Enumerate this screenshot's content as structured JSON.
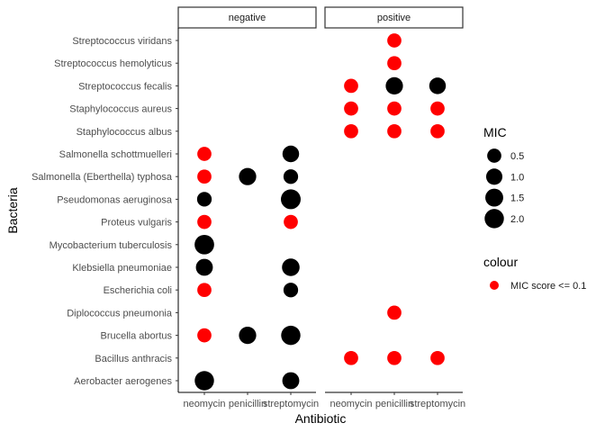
{
  "chart_data": {
    "type": "scatter",
    "facet_variable": "Gram staining",
    "facets": [
      "negative",
      "positive"
    ],
    "antibiotics": [
      "neomycin",
      "penicillin",
      "streptomycin"
    ],
    "bacteria": [
      "Aerobacter aerogenes",
      "Bacillus anthracis",
      "Brucella abortus",
      "Diplococcus pneumonia",
      "Escherichia coli",
      "Klebsiella pneumoniae",
      "Mycobacterium tuberculosis",
      "Proteus vulgaris",
      "Pseudomonas aeruginosa",
      "Salmonella (Eberthella) typhosa",
      "Salmonella schottmuelleri",
      "Staphylococcus albus",
      "Staphylococcus aureus",
      "Streptococcus fecalis",
      "Streptococcus hemolyticus",
      "Streptococcus viridans"
    ],
    "xlabel": "Antibiotic",
    "ylabel": "Bacteria",
    "size_legend": {
      "title": "MIC",
      "breaks": [
        0.5,
        1.0,
        1.5,
        2.0
      ],
      "labels": [
        "0.5",
        "1.0",
        "1.5",
        "2.0"
      ]
    },
    "colour_legend": {
      "title": "colour",
      "labels": [
        "MIC score <= 0.1"
      ],
      "color": "#ff0000"
    },
    "points": [
      {
        "facet": "negative",
        "bacteria": "Aerobacter aerogenes",
        "antibiotic": "neomycin",
        "mic": 2.0,
        "low_mic": false
      },
      {
        "facet": "negative",
        "bacteria": "Aerobacter aerogenes",
        "antibiotic": "streptomycin",
        "mic": 1.2,
        "low_mic": false
      },
      {
        "facet": "negative",
        "bacteria": "Brucella abortus",
        "antibiotic": "neomycin",
        "mic": 0.5,
        "low_mic": true
      },
      {
        "facet": "negative",
        "bacteria": "Brucella abortus",
        "antibiotic": "penicillin",
        "mic": 1.3,
        "low_mic": false
      },
      {
        "facet": "negative",
        "bacteria": "Brucella abortus",
        "antibiotic": "streptomycin",
        "mic": 2.0,
        "low_mic": false
      },
      {
        "facet": "negative",
        "bacteria": "Escherichia coli",
        "antibiotic": "neomycin",
        "mic": 0.5,
        "low_mic": true
      },
      {
        "facet": "negative",
        "bacteria": "Escherichia coli",
        "antibiotic": "streptomycin",
        "mic": 0.6,
        "low_mic": false
      },
      {
        "facet": "negative",
        "bacteria": "Klebsiella pneumoniae",
        "antibiotic": "neomycin",
        "mic": 1.2,
        "low_mic": false
      },
      {
        "facet": "negative",
        "bacteria": "Klebsiella pneumoniae",
        "antibiotic": "streptomycin",
        "mic": 1.4,
        "low_mic": false
      },
      {
        "facet": "negative",
        "bacteria": "Mycobacterium tuberculosis",
        "antibiotic": "neomycin",
        "mic": 2.1,
        "low_mic": false
      },
      {
        "facet": "negative",
        "bacteria": "Proteus vulgaris",
        "antibiotic": "neomycin",
        "mic": 0.5,
        "low_mic": true
      },
      {
        "facet": "negative",
        "bacteria": "Proteus vulgaris",
        "antibiotic": "streptomycin",
        "mic": 0.5,
        "low_mic": true
      },
      {
        "facet": "negative",
        "bacteria": "Pseudomonas aeruginosa",
        "antibiotic": "neomycin",
        "mic": 0.6,
        "low_mic": false
      },
      {
        "facet": "negative",
        "bacteria": "Pseudomonas aeruginosa",
        "antibiotic": "streptomycin",
        "mic": 2.2,
        "low_mic": false
      },
      {
        "facet": "negative",
        "bacteria": "Salmonella (Eberthella) typhosa",
        "antibiotic": "neomycin",
        "mic": 0.5,
        "low_mic": true
      },
      {
        "facet": "negative",
        "bacteria": "Salmonella (Eberthella) typhosa",
        "antibiotic": "penicillin",
        "mic": 1.3,
        "low_mic": false
      },
      {
        "facet": "negative",
        "bacteria": "Salmonella (Eberthella) typhosa",
        "antibiotic": "streptomycin",
        "mic": 0.6,
        "low_mic": false
      },
      {
        "facet": "negative",
        "bacteria": "Salmonella schottmuelleri",
        "antibiotic": "neomycin",
        "mic": 0.5,
        "low_mic": true
      },
      {
        "facet": "negative",
        "bacteria": "Salmonella schottmuelleri",
        "antibiotic": "streptomycin",
        "mic": 1.1,
        "low_mic": false
      },
      {
        "facet": "positive",
        "bacteria": "Bacillus anthracis",
        "antibiotic": "neomycin",
        "mic": 0.5,
        "low_mic": true
      },
      {
        "facet": "positive",
        "bacteria": "Bacillus anthracis",
        "antibiotic": "penicillin",
        "mic": 0.5,
        "low_mic": true
      },
      {
        "facet": "positive",
        "bacteria": "Bacillus anthracis",
        "antibiotic": "streptomycin",
        "mic": 0.5,
        "low_mic": true
      },
      {
        "facet": "positive",
        "bacteria": "Diplococcus pneumonia",
        "antibiotic": "penicillin",
        "mic": 0.5,
        "low_mic": true
      },
      {
        "facet": "positive",
        "bacteria": "Staphylococcus albus",
        "antibiotic": "neomycin",
        "mic": 0.5,
        "low_mic": true
      },
      {
        "facet": "positive",
        "bacteria": "Staphylococcus albus",
        "antibiotic": "penicillin",
        "mic": 0.5,
        "low_mic": true
      },
      {
        "facet": "positive",
        "bacteria": "Staphylococcus albus",
        "antibiotic": "streptomycin",
        "mic": 0.5,
        "low_mic": true
      },
      {
        "facet": "positive",
        "bacteria": "Staphylococcus aureus",
        "antibiotic": "neomycin",
        "mic": 0.5,
        "low_mic": true
      },
      {
        "facet": "positive",
        "bacteria": "Staphylococcus aureus",
        "antibiotic": "penicillin",
        "mic": 0.5,
        "low_mic": true
      },
      {
        "facet": "positive",
        "bacteria": "Staphylococcus aureus",
        "antibiotic": "streptomycin",
        "mic": 0.5,
        "low_mic": true
      },
      {
        "facet": "positive",
        "bacteria": "Streptococcus fecalis",
        "antibiotic": "neomycin",
        "mic": 0.5,
        "low_mic": true
      },
      {
        "facet": "positive",
        "bacteria": "Streptococcus fecalis",
        "antibiotic": "penicillin",
        "mic": 1.3,
        "low_mic": false
      },
      {
        "facet": "positive",
        "bacteria": "Streptococcus fecalis",
        "antibiotic": "streptomycin",
        "mic": 1.1,
        "low_mic": false
      },
      {
        "facet": "positive",
        "bacteria": "Streptococcus hemolyticus",
        "antibiotic": "penicillin",
        "mic": 0.5,
        "low_mic": true
      },
      {
        "facet": "positive",
        "bacteria": "Streptococcus viridans",
        "antibiotic": "penicillin",
        "mic": 0.5,
        "low_mic": true
      }
    ],
    "grid": false,
    "legend_position": "right",
    "colors": {
      "low_mic": "#ff0000",
      "default": "#000000"
    }
  }
}
